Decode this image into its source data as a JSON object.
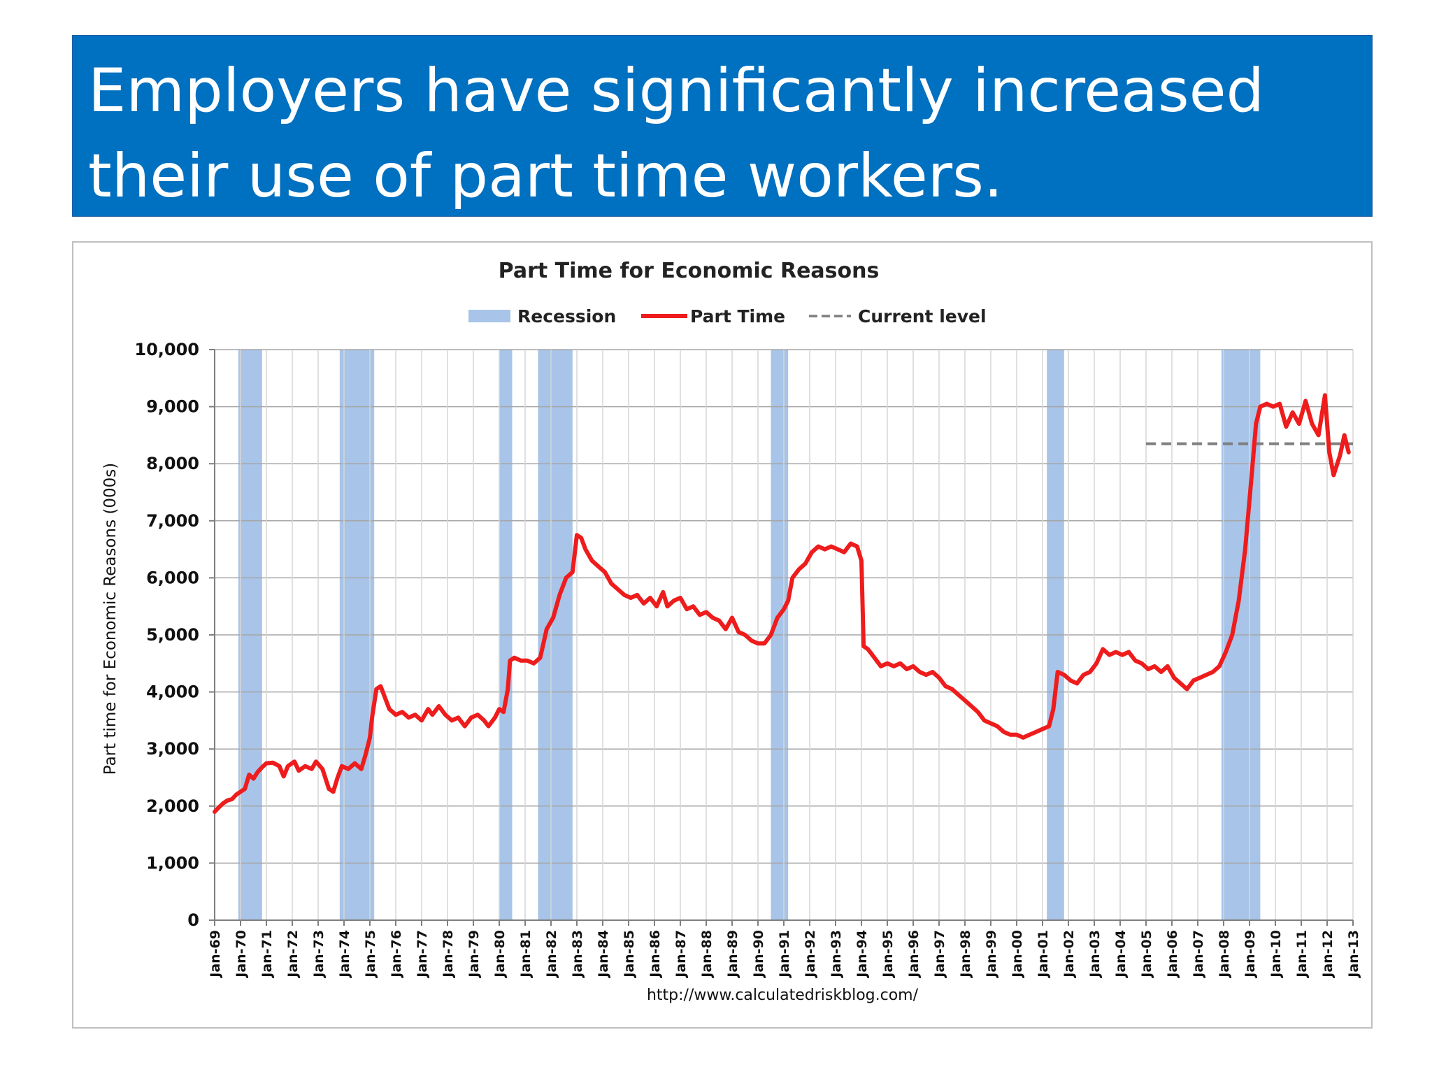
{
  "slide": {
    "title_line1": "Employers have significantly increased",
    "title_line2": "their use of part time workers."
  },
  "colors": {
    "header_bg": "#0070c0",
    "recession": "#a8c4e8",
    "part_time": "#ee1c1c",
    "current_level": "#7f7f7f",
    "grid": "#bfbfbf"
  },
  "chart_data": {
    "type": "line",
    "title": "Part Time for Economic Reasons",
    "ylabel": "Part time for Economic Reasons (000s)",
    "xlabel": "",
    "source": "http://www.calculatedriskblog.com/",
    "ylim": [
      0,
      10000
    ],
    "xlim": [
      "Jan-69",
      "Jan-13"
    ],
    "grid": true,
    "legend_position": "top-center",
    "legend": [
      {
        "key": "recession",
        "label": "Recession"
      },
      {
        "key": "part_time",
        "label": "Part Time"
      },
      {
        "key": "current",
        "label": "Current level"
      }
    ],
    "y_ticks": [
      {
        "value": 0,
        "label": "0"
      },
      {
        "value": 1000,
        "label": "1,000"
      },
      {
        "value": 2000,
        "label": "2,000"
      },
      {
        "value": 3000,
        "label": "3,000"
      },
      {
        "value": 4000,
        "label": "4,000"
      },
      {
        "value": 5000,
        "label": "5,000"
      },
      {
        "value": 6000,
        "label": "6,000"
      },
      {
        "value": 7000,
        "label": "7,000"
      },
      {
        "value": 8000,
        "label": "8,000"
      },
      {
        "value": 9000,
        "label": "9,000"
      },
      {
        "value": 10000,
        "label": "10,000"
      }
    ],
    "x_ticks": [
      "Jan-69",
      "Jan-70",
      "Jan-71",
      "Jan-72",
      "Jan-73",
      "Jan-74",
      "Jan-75",
      "Jan-76",
      "Jan-77",
      "Jan-78",
      "Jan-79",
      "Jan-80",
      "Jan-81",
      "Jan-82",
      "Jan-83",
      "Jan-84",
      "Jan-85",
      "Jan-86",
      "Jan-87",
      "Jan-88",
      "Jan-89",
      "Jan-90",
      "Jan-91",
      "Jan-92",
      "Jan-93",
      "Jan-94",
      "Jan-95",
      "Jan-96",
      "Jan-97",
      "Jan-98",
      "Jan-99",
      "Jan-00",
      "Jan-01",
      "Jan-02",
      "Jan-03",
      "Jan-04",
      "Jan-05",
      "Jan-06",
      "Jan-07",
      "Jan-08",
      "Jan-09",
      "Jan-10",
      "Jan-11",
      "Jan-12",
      "Jan-13"
    ],
    "recessions": [
      {
        "start": "1969-12",
        "end": "1970-11"
      },
      {
        "start": "1973-11",
        "end": "1975-03"
      },
      {
        "start": "1980-01",
        "end": "1980-07"
      },
      {
        "start": "1981-07",
        "end": "1982-11"
      },
      {
        "start": "1990-07",
        "end": "1991-03"
      },
      {
        "start": "2001-03",
        "end": "2001-11"
      },
      {
        "start": "2007-12",
        "end": "2009-06"
      }
    ],
    "current_level": {
      "value": 8350,
      "start": "2005-01",
      "end": "2012-12"
    },
    "series": [
      {
        "name": "Part Time",
        "points": [
          [
            "1969-01",
            1900
          ],
          [
            "1969-03",
            1980
          ],
          [
            "1969-05",
            2050
          ],
          [
            "1969-07",
            2100
          ],
          [
            "1969-09",
            2120
          ],
          [
            "1969-11",
            2200
          ],
          [
            "1970-01",
            2250
          ],
          [
            "1970-03",
            2300
          ],
          [
            "1970-05",
            2550
          ],
          [
            "1970-07",
            2480
          ],
          [
            "1970-09",
            2600
          ],
          [
            "1970-11",
            2680
          ],
          [
            "1971-01",
            2750
          ],
          [
            "1971-04",
            2760
          ],
          [
            "1971-07",
            2700
          ],
          [
            "1971-09",
            2520
          ],
          [
            "1971-11",
            2700
          ],
          [
            "1972-02",
            2780
          ],
          [
            "1972-04",
            2620
          ],
          [
            "1972-07",
            2700
          ],
          [
            "1972-10",
            2650
          ],
          [
            "1972-12",
            2780
          ],
          [
            "1973-03",
            2650
          ],
          [
            "1973-06",
            2300
          ],
          [
            "1973-08",
            2250
          ],
          [
            "1973-10",
            2500
          ],
          [
            "1973-12",
            2700
          ],
          [
            "1974-03",
            2650
          ],
          [
            "1974-06",
            2750
          ],
          [
            "1974-09",
            2650
          ],
          [
            "1974-11",
            2900
          ],
          [
            "1975-01",
            3200
          ],
          [
            "1975-02",
            3550
          ],
          [
            "1975-04",
            4050
          ],
          [
            "1975-06",
            4100
          ],
          [
            "1975-08",
            3900
          ],
          [
            "1975-10",
            3700
          ],
          [
            "1976-01",
            3600
          ],
          [
            "1976-04",
            3650
          ],
          [
            "1976-07",
            3550
          ],
          [
            "1976-10",
            3600
          ],
          [
            "1977-01",
            3500
          ],
          [
            "1977-04",
            3700
          ],
          [
            "1977-06",
            3600
          ],
          [
            "1977-09",
            3750
          ],
          [
            "1977-12",
            3600
          ],
          [
            "1978-03",
            3500
          ],
          [
            "1978-06",
            3550
          ],
          [
            "1978-09",
            3400
          ],
          [
            "1978-12",
            3550
          ],
          [
            "1979-03",
            3600
          ],
          [
            "1979-06",
            3500
          ],
          [
            "1979-08",
            3400
          ],
          [
            "1979-11",
            3550
          ],
          [
            "1980-01",
            3700
          ],
          [
            "1980-03",
            3650
          ],
          [
            "1980-05",
            4050
          ],
          [
            "1980-06",
            4550
          ],
          [
            "1980-08",
            4600
          ],
          [
            "1980-11",
            4550
          ],
          [
            "1981-02",
            4550
          ],
          [
            "1981-05",
            4500
          ],
          [
            "1981-08",
            4600
          ],
          [
            "1981-11",
            5100
          ],
          [
            "1982-02",
            5300
          ],
          [
            "1982-05",
            5700
          ],
          [
            "1982-08",
            6000
          ],
          [
            "1982-11",
            6100
          ],
          [
            "1983-01",
            6750
          ],
          [
            "1983-03",
            6700
          ],
          [
            "1983-05",
            6500
          ],
          [
            "1983-08",
            6300
          ],
          [
            "1983-11",
            6200
          ],
          [
            "1984-02",
            6100
          ],
          [
            "1984-05",
            5900
          ],
          [
            "1984-08",
            5800
          ],
          [
            "1984-11",
            5700
          ],
          [
            "1985-02",
            5650
          ],
          [
            "1985-05",
            5700
          ],
          [
            "1985-08",
            5550
          ],
          [
            "1985-11",
            5650
          ],
          [
            "1986-02",
            5500
          ],
          [
            "1986-05",
            5750
          ],
          [
            "1986-07",
            5500
          ],
          [
            "1986-10",
            5600
          ],
          [
            "1987-01",
            5650
          ],
          [
            "1987-04",
            5450
          ],
          [
            "1987-07",
            5500
          ],
          [
            "1987-10",
            5350
          ],
          [
            "1988-01",
            5400
          ],
          [
            "1988-04",
            5300
          ],
          [
            "1988-07",
            5250
          ],
          [
            "1988-10",
            5100
          ],
          [
            "1989-01",
            5300
          ],
          [
            "1989-04",
            5050
          ],
          [
            "1989-07",
            5000
          ],
          [
            "1989-10",
            4900
          ],
          [
            "1990-01",
            4850
          ],
          [
            "1990-04",
            4850
          ],
          [
            "1990-07",
            5000
          ],
          [
            "1990-10",
            5300
          ],
          [
            "1991-01",
            5450
          ],
          [
            "1991-03",
            5600
          ],
          [
            "1991-05",
            6000
          ],
          [
            "1991-08",
            6150
          ],
          [
            "1991-11",
            6250
          ],
          [
            "1992-02",
            6450
          ],
          [
            "1992-05",
            6550
          ],
          [
            "1992-08",
            6500
          ],
          [
            "1992-11",
            6550
          ],
          [
            "1993-02",
            6500
          ],
          [
            "1993-05",
            6450
          ],
          [
            "1993-08",
            6600
          ],
          [
            "1993-11",
            6550
          ],
          [
            "1994-01",
            6300
          ],
          [
            "1994-02",
            4800
          ],
          [
            "1994-04",
            4750
          ],
          [
            "1994-07",
            4600
          ],
          [
            "1994-10",
            4450
          ],
          [
            "1995-01",
            4500
          ],
          [
            "1995-04",
            4450
          ],
          [
            "1995-07",
            4500
          ],
          [
            "1995-10",
            4400
          ],
          [
            "1996-01",
            4450
          ],
          [
            "1996-04",
            4350
          ],
          [
            "1996-07",
            4300
          ],
          [
            "1996-10",
            4350
          ],
          [
            "1997-01",
            4250
          ],
          [
            "1997-04",
            4100
          ],
          [
            "1997-07",
            4050
          ],
          [
            "1997-10",
            3950
          ],
          [
            "1998-01",
            3850
          ],
          [
            "1998-04",
            3750
          ],
          [
            "1998-07",
            3650
          ],
          [
            "1998-10",
            3500
          ],
          [
            "1999-01",
            3450
          ],
          [
            "1999-04",
            3400
          ],
          [
            "1999-07",
            3300
          ],
          [
            "1999-10",
            3250
          ],
          [
            "2000-01",
            3250
          ],
          [
            "2000-04",
            3200
          ],
          [
            "2000-07",
            3250
          ],
          [
            "2000-10",
            3300
          ],
          [
            "2001-01",
            3350
          ],
          [
            "2001-04",
            3400
          ],
          [
            "2001-06",
            3700
          ],
          [
            "2001-08",
            4350
          ],
          [
            "2001-11",
            4300
          ],
          [
            "2002-02",
            4200
          ],
          [
            "2002-05",
            4150
          ],
          [
            "2002-08",
            4300
          ],
          [
            "2002-11",
            4350
          ],
          [
            "2003-02",
            4500
          ],
          [
            "2003-05",
            4750
          ],
          [
            "2003-08",
            4650
          ],
          [
            "2003-11",
            4700
          ],
          [
            "2004-02",
            4650
          ],
          [
            "2004-05",
            4700
          ],
          [
            "2004-08",
            4550
          ],
          [
            "2004-11",
            4500
          ],
          [
            "2005-02",
            4400
          ],
          [
            "2005-05",
            4450
          ],
          [
            "2005-08",
            4350
          ],
          [
            "2005-11",
            4450
          ],
          [
            "2006-02",
            4250
          ],
          [
            "2006-05",
            4150
          ],
          [
            "2006-08",
            4050
          ],
          [
            "2006-11",
            4200
          ],
          [
            "2007-02",
            4250
          ],
          [
            "2007-05",
            4300
          ],
          [
            "2007-08",
            4350
          ],
          [
            "2007-11",
            4450
          ],
          [
            "2008-02",
            4700
          ],
          [
            "2008-05",
            5000
          ],
          [
            "2008-08",
            5600
          ],
          [
            "2008-11",
            6500
          ],
          [
            "2009-02",
            7800
          ],
          [
            "2009-04",
            8700
          ],
          [
            "2009-06",
            9000
          ],
          [
            "2009-09",
            9050
          ],
          [
            "2009-12",
            9000
          ],
          [
            "2010-03",
            9050
          ],
          [
            "2010-06",
            8650
          ],
          [
            "2010-09",
            8900
          ],
          [
            "2010-12",
            8700
          ],
          [
            "2011-03",
            9100
          ],
          [
            "2011-06",
            8700
          ],
          [
            "2011-09",
            8500
          ],
          [
            "2011-12",
            9200
          ],
          [
            "2012-02",
            8200
          ],
          [
            "2012-04",
            7800
          ],
          [
            "2012-07",
            8150
          ],
          [
            "2012-09",
            8500
          ],
          [
            "2012-11",
            8200
          ]
        ]
      }
    ]
  }
}
